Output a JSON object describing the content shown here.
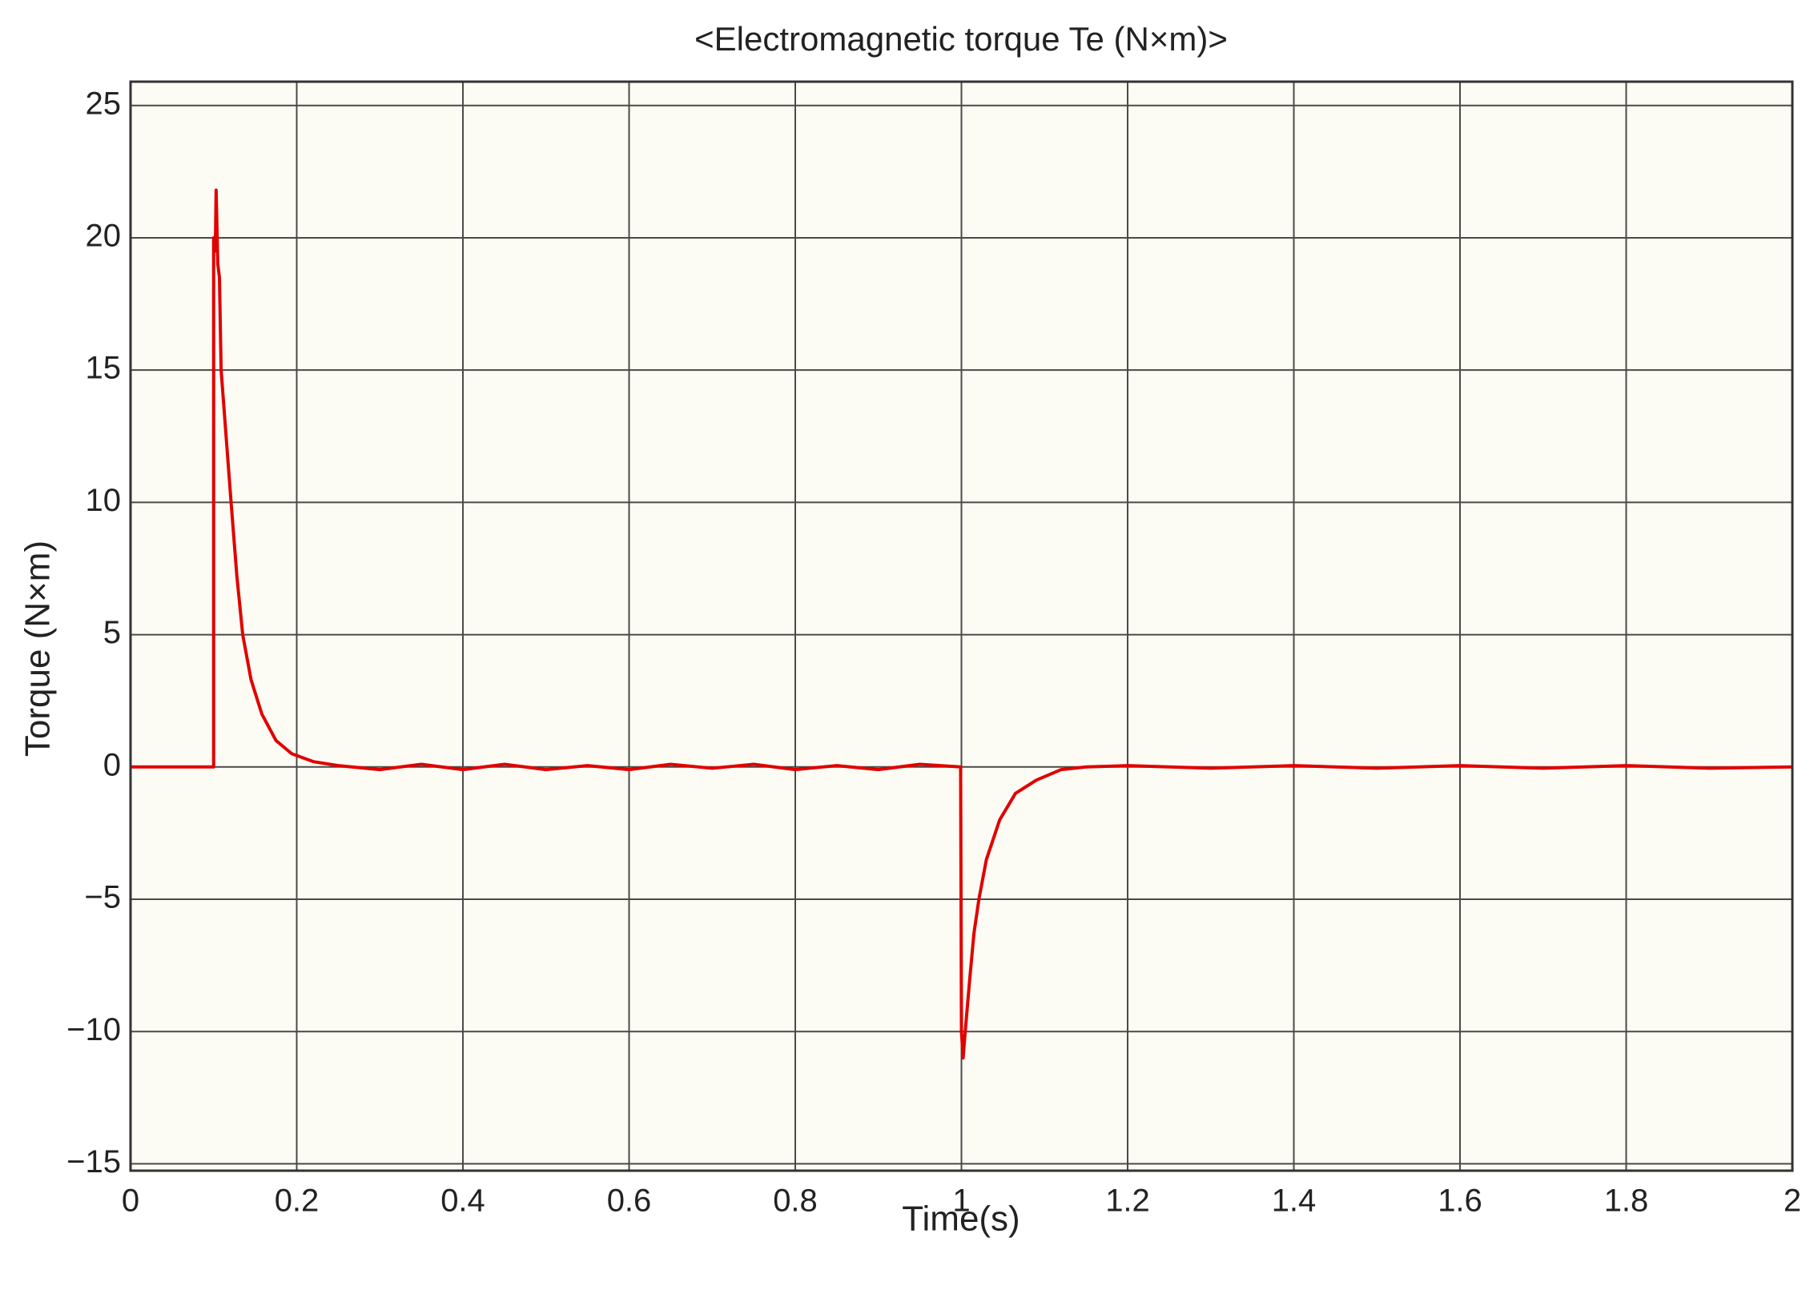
{
  "chart_data": {
    "type": "line",
    "title": "<Electromagnetic torque Te (N×m)>",
    "xlabel": "Time(s)",
    "ylabel": "Torque (N×m)",
    "x": [
      0,
      0.1,
      0.1,
      0.102,
      0.103,
      0.105,
      0.107,
      0.109,
      0.115,
      0.121,
      0.128,
      0.135,
      0.145,
      0.158,
      0.175,
      0.194,
      0.22,
      0.25,
      0.3,
      0.35,
      0.4,
      0.45,
      0.5,
      0.55,
      0.6,
      0.65,
      0.7,
      0.75,
      0.8,
      0.85,
      0.9,
      0.95,
      0.999,
      1.0,
      1.002,
      1.004,
      1.01,
      1.015,
      1.021,
      1.03,
      1.046,
      1.065,
      1.09,
      1.12,
      1.15,
      1.2,
      1.3,
      1.4,
      1.5,
      1.6,
      1.7,
      1.8,
      1.9,
      2.0
    ],
    "values": [
      0,
      0,
      20,
      19.5,
      21.8,
      19,
      18.5,
      15,
      12.5,
      10,
      7.2,
      5,
      3.3,
      2,
      1,
      0.5,
      0.2,
      0.05,
      -0.1,
      0.1,
      -0.1,
      0.1,
      -0.1,
      0.05,
      -0.1,
      0.1,
      -0.05,
      0.1,
      -0.1,
      0.05,
      -0.1,
      0.1,
      0,
      -10,
      -11,
      -10.2,
      -8,
      -6.3,
      -5,
      -3.5,
      -2,
      -1,
      -0.5,
      -0.1,
      0,
      0.05,
      -0.05,
      0.05,
      -0.05,
      0.05,
      -0.05,
      0.05,
      -0.05,
      0
    ],
    "color": "#e00000",
    "xlim": [
      0,
      2
    ],
    "xticks": [
      0,
      0.2,
      0.4,
      0.6,
      0.8,
      1,
      1.2,
      1.4,
      1.6,
      1.8,
      2
    ],
    "ylim": [
      -15.26,
      25.9
    ],
    "yticks": [
      {
        "value": -15,
        "label": "−15"
      },
      {
        "value": -10,
        "label": "−10"
      },
      {
        "value": -5,
        "label": "−5"
      },
      0,
      5,
      10,
      15,
      20,
      25
    ],
    "grid": true
  }
}
